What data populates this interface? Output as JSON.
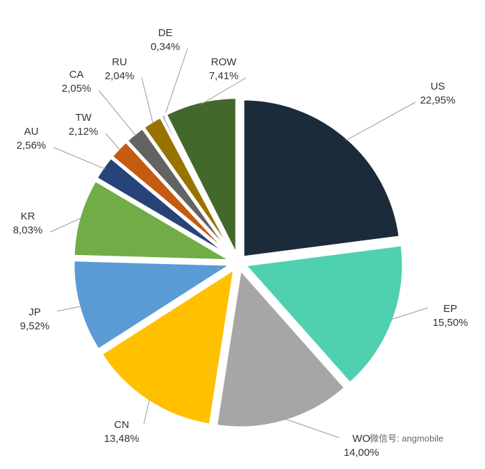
{
  "chart_data": {
    "type": "pie",
    "categories": [
      "US",
      "EP",
      "WO",
      "CN",
      "JP",
      "KR",
      "AU",
      "TW",
      "CA",
      "RU",
      "DE",
      "ROW"
    ],
    "values": [
      22.95,
      15.5,
      14.0,
      13.48,
      9.52,
      8.03,
      2.56,
      2.12,
      2.05,
      2.04,
      0.34,
      7.41
    ],
    "value_labels": [
      "22,95%",
      "15,50%",
      "14,00%",
      "13,48%",
      "9,52%",
      "8,03%",
      "2,56%",
      "2,12%",
      "2,05%",
      "2,04%",
      "0,34%",
      "7,41%"
    ],
    "colors": [
      "#1c2b39",
      "#4fd1b0",
      "#a6a6a6",
      "#ffc000",
      "#5b9bd5",
      "#70ad47",
      "#264478",
      "#c55a11",
      "#636363",
      "#997300",
      "#2e75b6",
      "#43682b"
    ],
    "watermark": "微信号: angmobile"
  }
}
